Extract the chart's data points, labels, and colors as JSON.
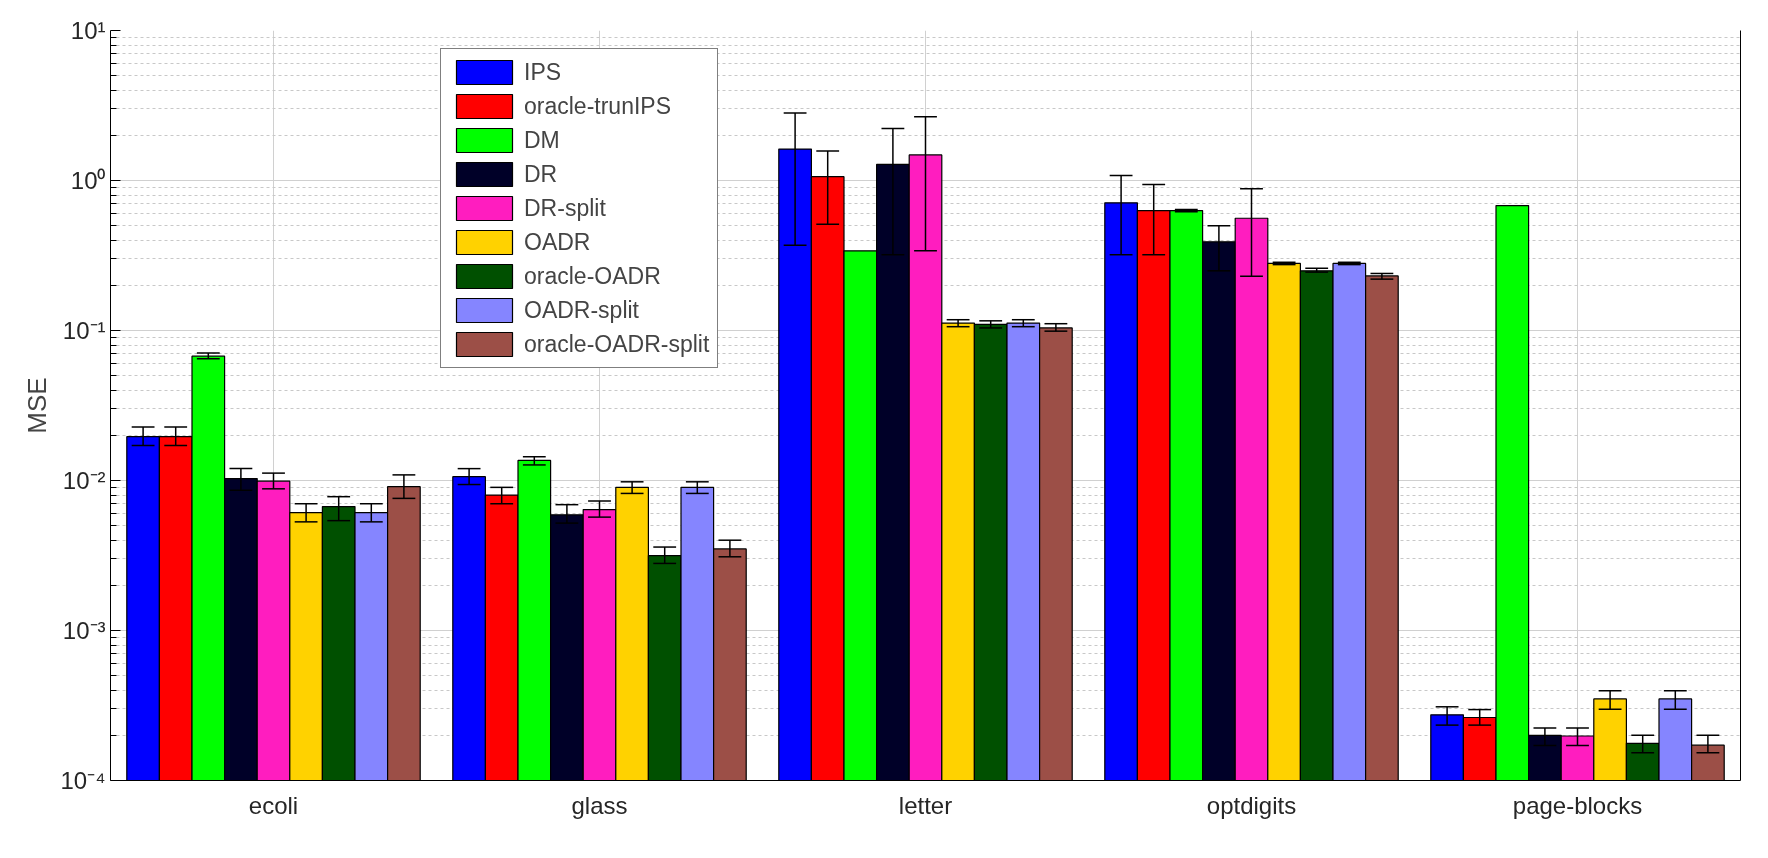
{
  "chart_data": {
    "type": "bar",
    "ylabel": "MSE",
    "categories": [
      "ecoli",
      "glass",
      "letter",
      "optdigits",
      "page-blocks"
    ],
    "log": true,
    "ylim": [
      0.0001,
      10
    ],
    "yticks": [
      {
        "value": 0.0001,
        "label": "10⁻⁴"
      },
      {
        "value": 0.001,
        "label": "10⁻³"
      },
      {
        "value": 0.01,
        "label": "10⁻²"
      },
      {
        "value": 0.1,
        "label": "10⁻¹"
      },
      {
        "value": 1,
        "label": "10⁰"
      },
      {
        "value": 10,
        "label": "10¹"
      }
    ],
    "grid": true,
    "legend": "top left",
    "series": [
      {
        "name": "IPS",
        "color": "#0000ff",
        "values": [
          0.0196,
          0.0106,
          1.62,
          0.71,
          0.000274
        ],
        "errors": [
          [
            0.0171,
            0.0227
          ],
          [
            0.0094,
            0.012
          ],
          [
            0.37,
            2.82
          ],
          [
            0.32,
            1.08
          ],
          [
            0.000234,
            0.00031
          ]
        ]
      },
      {
        "name": "oracle-trunIPS",
        "color": "#ff0000",
        "values": [
          0.0196,
          0.008,
          1.06,
          0.63,
          0.000263
        ],
        "errors": [
          [
            0.0171,
            0.0227
          ],
          [
            0.007,
            0.009
          ],
          [
            0.51,
            1.57
          ],
          [
            0.32,
            0.94
          ],
          [
            0.000234,
            0.000297
          ]
        ]
      },
      {
        "name": "DM",
        "color": "#00ff00",
        "values": [
          0.0674,
          0.0136,
          0.34,
          0.63,
          0.68
        ],
        "errors": [
          [
            0.0647,
            0.0707
          ],
          [
            0.0127,
            0.0144
          ],
          null,
          [
            0.62,
            0.64
          ],
          null
        ]
      },
      {
        "name": "DR",
        "color": "#000028",
        "values": [
          0.0103,
          0.0059,
          1.28,
          0.39,
          0.0002
        ],
        "errors": [
          [
            0.0086,
            0.012
          ],
          [
            0.0052,
            0.0069
          ],
          [
            0.32,
            2.22
          ],
          [
            0.25,
            0.5
          ],
          [
            0.000171,
            0.000224
          ]
        ]
      },
      {
        "name": "DR-split",
        "color": "#ff1dbf",
        "values": [
          0.0099,
          0.0064,
          1.48,
          0.56,
          0.000198
        ],
        "errors": [
          [
            0.0088,
            0.0112
          ],
          [
            0.0057,
            0.0073
          ],
          [
            0.34,
            2.66
          ],
          [
            0.23,
            0.88
          ],
          [
            0.000171,
            0.000224
          ]
        ]
      },
      {
        "name": "OADR",
        "color": "#ffd200",
        "values": [
          0.0061,
          0.009,
          0.112,
          0.28,
          0.00035
        ],
        "errors": [
          [
            0.0053,
            0.007
          ],
          [
            0.0082,
            0.0098
          ],
          [
            0.106,
            0.118
          ],
          [
            0.275,
            0.285
          ],
          [
            0.000299,
            0.000396
          ]
        ]
      },
      {
        "name": "oracle-OADR",
        "color": "#005000",
        "values": [
          0.0067,
          0.00316,
          0.11,
          0.25,
          0.000177
        ],
        "errors": [
          [
            0.0054,
            0.0078
          ],
          [
            0.0028,
            0.0036
          ],
          [
            0.104,
            0.116
          ],
          [
            0.245,
            0.26
          ],
          [
            0.000153,
            0.0002
          ]
        ]
      },
      {
        "name": "OADR-split",
        "color": "#8585ff",
        "values": [
          0.0061,
          0.009,
          0.112,
          0.28,
          0.00035
        ],
        "errors": [
          [
            0.0053,
            0.007
          ],
          [
            0.0082,
            0.0098
          ],
          [
            0.106,
            0.118
          ],
          [
            0.275,
            0.285
          ],
          [
            0.000299,
            0.000396
          ]
        ]
      },
      {
        "name": "oracle-OADR-split",
        "color": "#9c4f47",
        "values": [
          0.0091,
          0.0035,
          0.104,
          0.231,
          0.000172
        ],
        "errors": [
          [
            0.0076,
            0.0109
          ],
          [
            0.0031,
            0.004
          ],
          [
            0.099,
            0.111
          ],
          [
            0.22,
            0.24
          ],
          [
            0.000153,
            0.0002
          ]
        ]
      }
    ]
  }
}
